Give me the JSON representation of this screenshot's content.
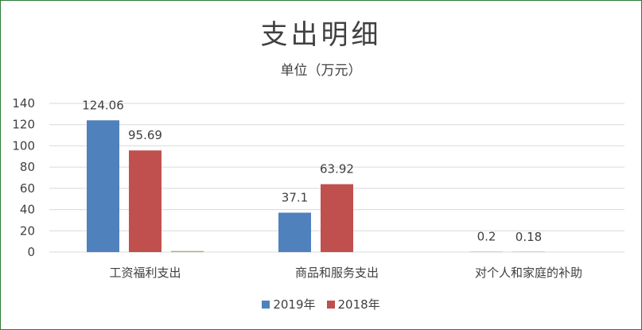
{
  "chart_data": {
    "type": "bar",
    "title": "支出明细",
    "subtitle": "单位（万元）",
    "categories": [
      "工资福利支出",
      "商品和服务支出",
      "对个人和家庭的补助"
    ],
    "series": [
      {
        "name": "2019年",
        "color": "#4f81bd",
        "values": [
          124.06,
          37.1,
          0.2
        ],
        "labels": [
          "124.06",
          "37.1",
          "0.2"
        ]
      },
      {
        "name": "2018年",
        "color": "#c0504d",
        "values": [
          95.69,
          63.92,
          0.18
        ],
        "labels": [
          "95.69",
          "63.92",
          "0.18"
        ]
      },
      {
        "name": "",
        "color": "#9bbb59",
        "values": [
          1,
          0,
          0
        ],
        "labels": [
          "",
          "",
          ""
        ]
      }
    ],
    "ylim": [
      0,
      140
    ],
    "yticks": [
      0,
      20,
      40,
      60,
      80,
      100,
      120,
      140
    ],
    "grid": true,
    "legend_position": "bottom"
  }
}
